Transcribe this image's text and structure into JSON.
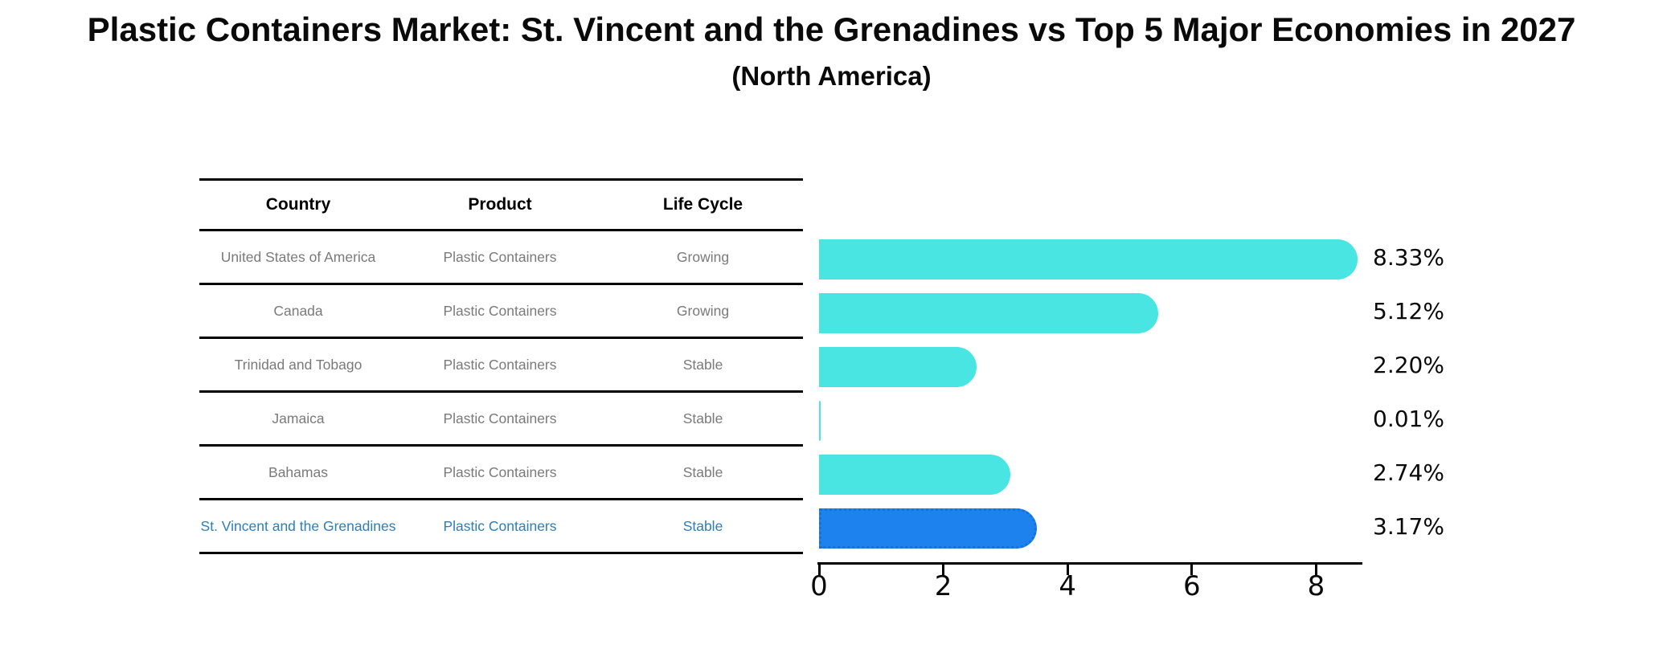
{
  "title": "Plastic Containers Market: St. Vincent and the Grenadines vs Top 5 Major Economies in 2027",
  "subtitle": "(North America)",
  "table": {
    "headers": [
      "Country",
      "Product",
      "Life Cycle"
    ],
    "rows": [
      {
        "country": "United States of America",
        "product": "Plastic Containers",
        "life_cycle": "Growing",
        "value_label": "8.33%",
        "highlight": false
      },
      {
        "country": "Canada",
        "product": "Plastic Containers",
        "life_cycle": "Growing",
        "value_label": "5.12%",
        "highlight": false
      },
      {
        "country": "Trinidad and Tobago",
        "product": "Plastic Containers",
        "life_cycle": "Stable",
        "value_label": "2.20%",
        "highlight": false
      },
      {
        "country": "Jamaica",
        "product": "Plastic Containers",
        "life_cycle": "Stable",
        "value_label": "0.01%",
        "highlight": false
      },
      {
        "country": "Bahamas",
        "product": "Plastic Containers",
        "life_cycle": "Stable",
        "value_label": "2.74%",
        "highlight": false
      },
      {
        "country": "St. Vincent and the Grenadines",
        "product": "Plastic Containers",
        "life_cycle": "Stable",
        "value_label": "3.17%",
        "highlight": true
      }
    ]
  },
  "chart_data": {
    "type": "bar",
    "orientation": "horizontal",
    "title": "Plastic Containers Market: St. Vincent and the Grenadines vs Top 5 Major Economies in 2027",
    "subtitle": "(North America)",
    "categories": [
      "United States of America",
      "Canada",
      "Trinidad and Tobago",
      "Jamaica",
      "Bahamas",
      "St. Vincent and the Grenadines"
    ],
    "values": [
      8.33,
      5.12,
      2.2,
      0.01,
      2.74,
      3.17
    ],
    "data_labels": [
      "8.33%",
      "5.12%",
      "2.20%",
      "0.01%",
      "2.74%",
      "3.17%"
    ],
    "xlabel": "",
    "ylabel": "",
    "xlim": [
      0,
      8.75
    ],
    "xticks": [
      0,
      2,
      4,
      6,
      8
    ],
    "grid": false,
    "legend": false,
    "highlight_index": 5
  },
  "colors": {
    "bar": "#48E5E3",
    "highlight_bar": "#1E82EE",
    "highlight_border": "#1670DE",
    "highlight_text": "#2E7EB8",
    "cell_text": "#7A7A7A",
    "axis": "#000000"
  }
}
